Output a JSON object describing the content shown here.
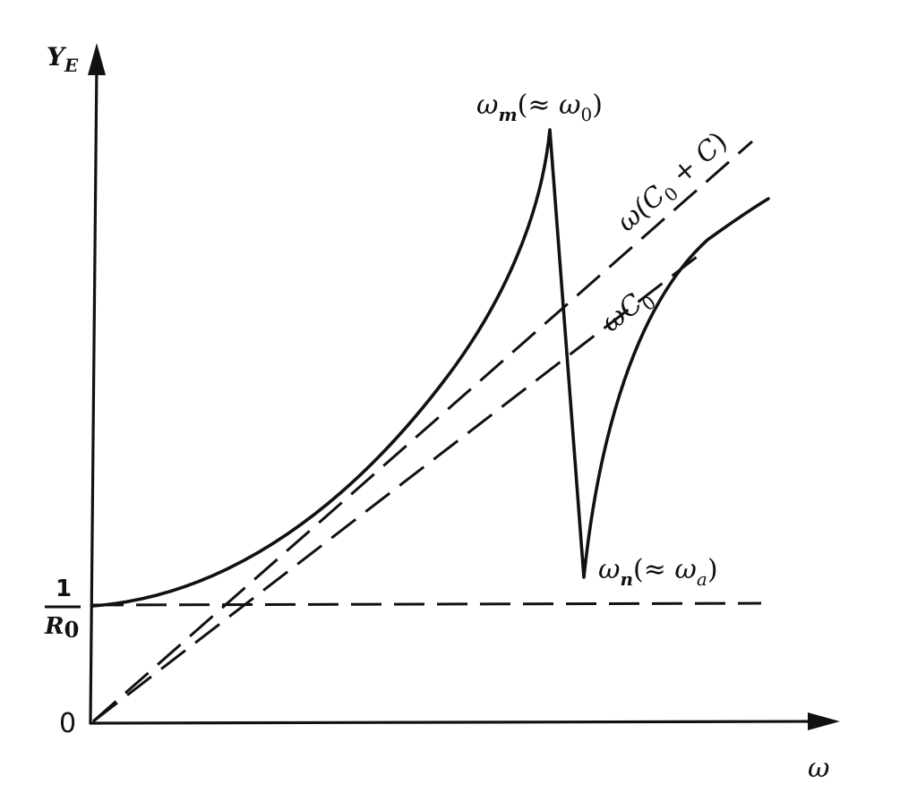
{
  "diagram": {
    "y_axis": {
      "symbol": "Y",
      "subscript": "E"
    },
    "x_axis": {
      "symbol": "ω"
    },
    "origin_label": "0",
    "y_intercept": {
      "numerator": "1",
      "denominator_symbol": "R",
      "denominator_subscript": "0"
    },
    "peak": {
      "symbol": "ω",
      "subscript": "m",
      "approx": "(≈ ",
      "approx_symbol": "ω",
      "approx_subscript": "0",
      "close": ")"
    },
    "trough": {
      "symbol": "ω",
      "subscript": "n",
      "approx": "(≈ ",
      "approx_symbol": "ω",
      "approx_subscript": "a",
      "close": ")"
    },
    "asymptote_total": {
      "prefix": "ω(",
      "c0": "C",
      "c0_sub": "0",
      "plus": " + ",
      "c": "C",
      "close": ")"
    },
    "asymptote_static": {
      "prefix": "ω",
      "c0": "C",
      "c0_sub": "0"
    }
  }
}
